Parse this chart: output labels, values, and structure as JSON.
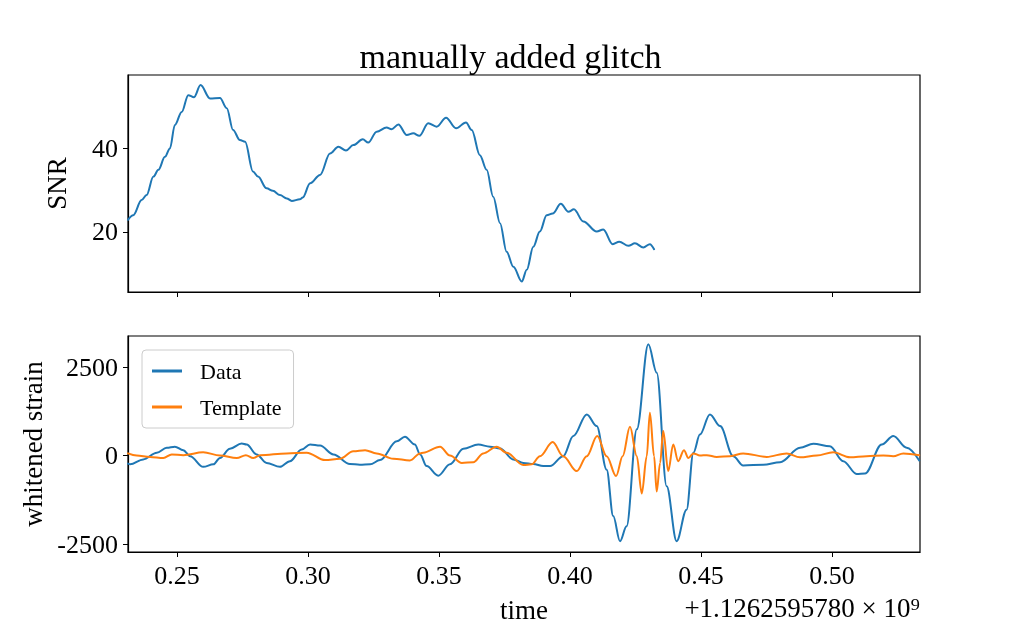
{
  "chart_data": [
    {
      "type": "line",
      "title": "manually added glitch",
      "ylabel": "SNR",
      "xlim": [
        0.2313,
        0.5336
      ],
      "ylim": [
        5.7,
        57.4
      ],
      "xticks": [
        0.25,
        0.3,
        0.35,
        0.4,
        0.45,
        0.5
      ],
      "yticks": [
        20,
        40
      ],
      "tick_labels": "y",
      "grid": false,
      "series": [
        {
          "color": "#1f77b4",
          "x": [
            0.2313,
            0.2333,
            0.2365,
            0.2384,
            0.241,
            0.2429,
            0.2454,
            0.2473,
            0.2492,
            0.2518,
            0.2543,
            0.2565,
            0.259,
            0.2626,
            0.2664,
            0.269,
            0.2714,
            0.274,
            0.276,
            0.279,
            0.2809,
            0.2842,
            0.2866,
            0.2893,
            0.2919,
            0.2938,
            0.2969,
            0.298,
            0.3008,
            0.3046,
            0.3084,
            0.3116,
            0.3145,
            0.3173,
            0.3209,
            0.323,
            0.3262,
            0.33,
            0.3319,
            0.3345,
            0.3377,
            0.3402,
            0.3425,
            0.3459,
            0.3491,
            0.3527,
            0.3565,
            0.3603,
            0.3625,
            0.3656,
            0.3682,
            0.3707,
            0.3733,
            0.3758,
            0.3784,
            0.3816,
            0.3835,
            0.386,
            0.3885,
            0.3911,
            0.3934,
            0.3965,
            0.3994,
            0.4015,
            0.4051,
            0.4102,
            0.4127,
            0.4163,
            0.4188,
            0.4223,
            0.4248,
            0.428,
            0.4305,
            0.4321
          ],
          "values": [
            22.9,
            24.0,
            27.6,
            28.8,
            33.2,
            34.8,
            37.9,
            39.9,
            45.5,
            48.6,
            52.6,
            52.1,
            55.0,
            51.8,
            51.9,
            49.5,
            44.3,
            41.9,
            41.5,
            34.4,
            33.2,
            30.4,
            29.8,
            28.8,
            28.0,
            27.4,
            27.8,
            28.2,
            31.6,
            33.6,
            38.7,
            40.3,
            39.4,
            40.7,
            42.1,
            41.3,
            43.9,
            44.9,
            44.5,
            45.6,
            43.1,
            43.5,
            42.9,
            45.9,
            45.1,
            47.2,
            44.7,
            46.1,
            44.3,
            38.3,
            34.8,
            28.4,
            22.1,
            15.3,
            11.7,
            8.2,
            11.0,
            16.5,
            20.1,
            24.0,
            24.4,
            26.7,
            24.8,
            25.4,
            22.5,
            20.1,
            20.6,
            17.1,
            17.7,
            16.7,
            17.3,
            16.3,
            17.1,
            15.9
          ]
        }
      ]
    },
    {
      "type": "line",
      "xlabel": "time",
      "ylabel": "whitened strain",
      "xlim": [
        0.2313,
        0.5336
      ],
      "ylim": [
        -2726,
        3376
      ],
      "xticks": [
        0.25,
        {
          "value": 0.3,
          "label": "0.30"
        },
        0.35,
        {
          "value": 0.4,
          "label": "0.40"
        },
        0.45,
        {
          "value": 0.5,
          "label": "0.50"
        }
      ],
      "yticks": [
        -2500,
        0,
        2500
      ],
      "grid": false,
      "legend": "top left",
      "annotations": [
        "+1.1262595780 × 10⁹"
      ],
      "series": [
        {
          "name": "Data",
          "color": "#1f77b4",
          "x": [
            0.2313,
            0.2321,
            0.2371,
            0.2423,
            0.2461,
            0.2492,
            0.2524,
            0.255,
            0.26,
            0.2639,
            0.2664,
            0.2702,
            0.2747,
            0.2766,
            0.2804,
            0.2842,
            0.2893,
            0.2931,
            0.2976,
            0.3008,
            0.3046,
            0.3097,
            0.316,
            0.3198,
            0.3237,
            0.3275,
            0.3339,
            0.337,
            0.3408,
            0.3428,
            0.3453,
            0.3497,
            0.3542,
            0.3593,
            0.365,
            0.3695,
            0.3733,
            0.3784,
            0.3822,
            0.386,
            0.3898,
            0.3924,
            0.3974,
            0.4013,
            0.4064,
            0.4102,
            0.414,
            0.4165,
            0.4191,
            0.4216,
            0.4255,
            0.4299,
            0.4331,
            0.4369,
            0.4407,
            0.4445,
            0.4471,
            0.4496,
            0.4534,
            0.4573,
            0.4623,
            0.4661,
            0.4738,
            0.4802,
            0.4878,
            0.4929,
            0.4992,
            0.5043,
            0.5094,
            0.5126,
            0.519,
            0.5234,
            0.5285,
            0.5333
          ],
          "values": [
            -230,
            -250,
            -110,
            80,
            220,
            250,
            150,
            -20,
            -320,
            -250,
            -70,
            190,
            340,
            310,
            30,
            -210,
            -320,
            -160,
            170,
            310,
            280,
            30,
            -240,
            -260,
            -250,
            -130,
            400,
            530,
            310,
            30,
            -300,
            -570,
            -250,
            190,
            310,
            250,
            200,
            -110,
            -210,
            -240,
            -300,
            -300,
            -20,
            550,
            1160,
            830,
            -400,
            -1710,
            -2420,
            -2000,
            740,
            3140,
            2340,
            -870,
            -2420,
            -1530,
            80,
            590,
            1160,
            830,
            -20,
            -280,
            -260,
            -190,
            220,
            330,
            260,
            -160,
            -520,
            -510,
            310,
            550,
            220,
            -140
          ]
        },
        {
          "name": "Template",
          "color": "#ff7f0e",
          "x": [
            0.2313,
            0.2346,
            0.2397,
            0.2448,
            0.248,
            0.2524,
            0.26,
            0.2664,
            0.2728,
            0.2763,
            0.2791,
            0.2817,
            0.2919,
            0.2995,
            0.3065,
            0.3122,
            0.3173,
            0.3218,
            0.3262,
            0.3326,
            0.3389,
            0.3428,
            0.344,
            0.3504,
            0.3542,
            0.3587,
            0.3631,
            0.3669,
            0.372,
            0.3758,
            0.3822,
            0.3854,
            0.3885,
            0.3934,
            0.3974,
            0.4026,
            0.4064,
            0.4104,
            0.414,
            0.4176,
            0.4201,
            0.4229,
            0.4255,
            0.4274,
            0.4293,
            0.4305,
            0.4321,
            0.4331,
            0.4344,
            0.4356,
            0.4375,
            0.4394,
            0.4413,
            0.4435,
            0.4452,
            0.4471,
            0.4496,
            0.4522,
            0.456,
            0.4611,
            0.4661,
            0.4751,
            0.4827,
            0.4878,
            0.4942,
            0.5005,
            0.5069,
            0.5132,
            0.5196,
            0.5234,
            0.5272,
            0.5333
          ],
          "values": [
            60,
            0,
            -40,
            -70,
            30,
            10,
            90,
            0,
            -70,
            10,
            -70,
            10,
            60,
            80,
            -130,
            -90,
            120,
            150,
            60,
            -90,
            -140,
            60,
            80,
            250,
            0,
            -210,
            -190,
            60,
            250,
            80,
            -270,
            -250,
            -20,
            380,
            -20,
            -440,
            -20,
            550,
            -20,
            -580,
            -20,
            810,
            -20,
            -1070,
            -20,
            1210,
            -20,
            -1020,
            -210,
            690,
            -440,
            310,
            -160,
            150,
            -70,
            60,
            0,
            10,
            -40,
            -20,
            60,
            -40,
            60,
            -50,
            0,
            90,
            -50,
            -20,
            0,
            -20,
            60,
            10
          ]
        }
      ]
    }
  ]
}
